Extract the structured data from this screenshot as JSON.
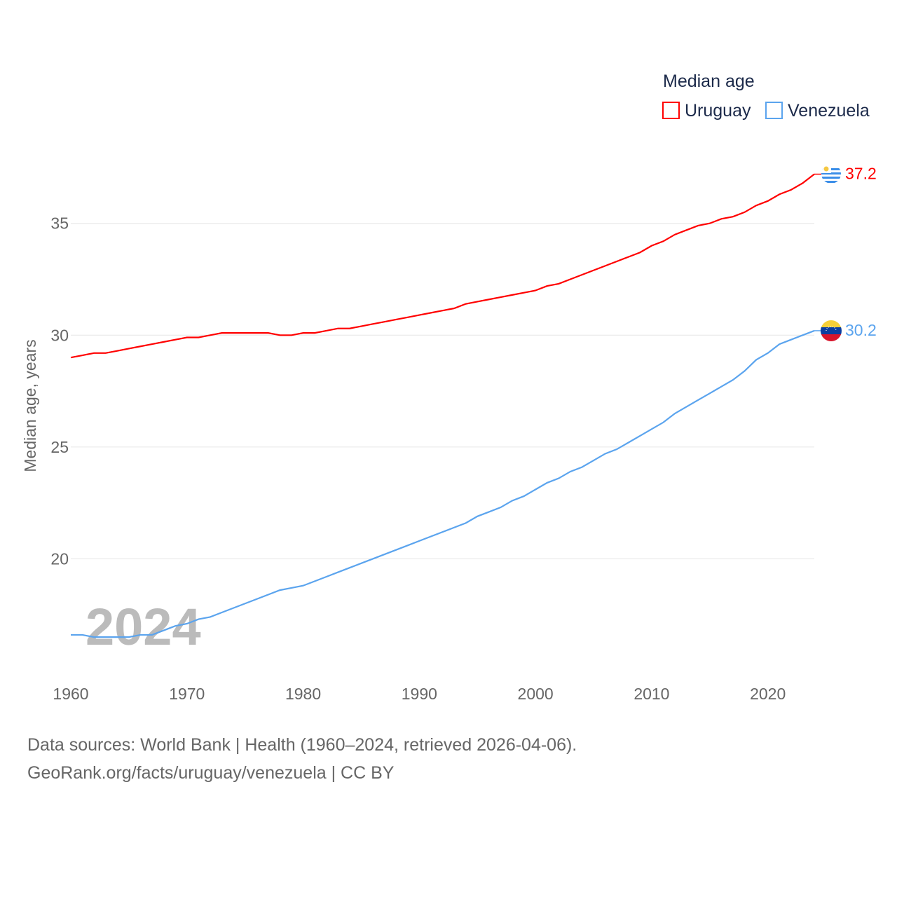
{
  "chart_data": {
    "type": "line",
    "legend_title": "Median age",
    "legend_position": "top-right",
    "ylabel": "Median age, years",
    "xlabel": "",
    "xlim": [
      1960,
      2024
    ],
    "ylim": [
      15,
      38
    ],
    "xticks": [
      1960,
      1970,
      1980,
      1990,
      2000,
      2010,
      2020
    ],
    "yticks": [
      20,
      25,
      30,
      35
    ],
    "grid": true,
    "watermark_year": "2024",
    "x": [
      1960,
      1961,
      1962,
      1963,
      1964,
      1965,
      1966,
      1967,
      1968,
      1969,
      1970,
      1971,
      1972,
      1973,
      1974,
      1975,
      1976,
      1977,
      1978,
      1979,
      1980,
      1981,
      1982,
      1983,
      1984,
      1985,
      1986,
      1987,
      1988,
      1989,
      1990,
      1991,
      1992,
      1993,
      1994,
      1995,
      1996,
      1997,
      1998,
      1999,
      2000,
      2001,
      2002,
      2003,
      2004,
      2005,
      2006,
      2007,
      2008,
      2009,
      2010,
      2011,
      2012,
      2013,
      2014,
      2015,
      2016,
      2017,
      2018,
      2019,
      2020,
      2021,
      2022,
      2023,
      2024
    ],
    "series": [
      {
        "name": "Uruguay",
        "color": "#ff0000",
        "end_label": "37.2",
        "values": [
          29.0,
          29.1,
          29.2,
          29.2,
          29.3,
          29.4,
          29.5,
          29.6,
          29.7,
          29.8,
          29.9,
          29.9,
          30.0,
          30.1,
          30.1,
          30.1,
          30.1,
          30.1,
          30.0,
          30.0,
          30.1,
          30.1,
          30.2,
          30.3,
          30.3,
          30.4,
          30.5,
          30.6,
          30.7,
          30.8,
          30.9,
          31.0,
          31.1,
          31.2,
          31.4,
          31.5,
          31.6,
          31.7,
          31.8,
          31.9,
          32.0,
          32.2,
          32.3,
          32.5,
          32.7,
          32.9,
          33.1,
          33.3,
          33.5,
          33.7,
          34.0,
          34.2,
          34.5,
          34.7,
          34.9,
          35.0,
          35.2,
          35.3,
          35.5,
          35.8,
          36.0,
          36.3,
          36.5,
          36.8,
          37.2
        ]
      },
      {
        "name": "Venezuela",
        "color": "#5ba4ee",
        "end_label": "30.2",
        "values": [
          16.6,
          16.6,
          16.5,
          16.5,
          16.5,
          16.5,
          16.6,
          16.6,
          16.8,
          17.0,
          17.1,
          17.3,
          17.4,
          17.6,
          17.8,
          18.0,
          18.2,
          18.4,
          18.6,
          18.7,
          18.8,
          19.0,
          19.2,
          19.4,
          19.6,
          19.8,
          20.0,
          20.2,
          20.4,
          20.6,
          20.8,
          21.0,
          21.2,
          21.4,
          21.6,
          21.9,
          22.1,
          22.3,
          22.6,
          22.8,
          23.1,
          23.4,
          23.6,
          23.9,
          24.1,
          24.4,
          24.7,
          24.9,
          25.2,
          25.5,
          25.8,
          26.1,
          26.5,
          26.8,
          27.1,
          27.4,
          27.7,
          28.0,
          28.4,
          28.9,
          29.2,
          29.6,
          29.8,
          30.0,
          30.2
        ]
      }
    ]
  },
  "footer": {
    "line1": "Data sources: World Bank | Health (1960–2024, retrieved 2026-04-06).",
    "line2": "GeoRank.org/facts/uruguay/venezuela | CC BY"
  }
}
